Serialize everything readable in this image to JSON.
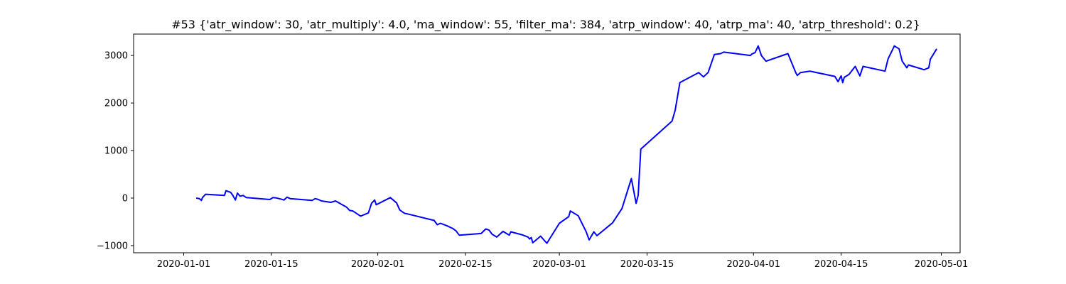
{
  "chart_data": {
    "type": "line",
    "title": "#53 {'atr_window': 30, 'atr_multiply': 4.0, 'ma_window': 55, 'filter_ma': 384, 'atrp_window': 40, 'atrp_ma': 40, 'atrp_threshold': 0.2}",
    "xlabel": "",
    "ylabel": "",
    "xlim": [
      "2019-12-24",
      "2020-05-04"
    ],
    "ylim": [
      -1150,
      3450
    ],
    "x_ticks": [
      "2020-01-01",
      "2020-01-15",
      "2020-02-01",
      "2020-02-15",
      "2020-03-01",
      "2020-03-15",
      "2020-04-01",
      "2020-04-15",
      "2020-05-01"
    ],
    "y_ticks": [
      -1000,
      0,
      1000,
      2000,
      3000
    ],
    "grid": false,
    "series": [
      {
        "color": "#0000ff",
        "points": [
          [
            "2020-01-03",
            0
          ],
          [
            "2020-01-03 12:00",
            -10
          ],
          [
            "2020-01-03 20:00",
            -50
          ],
          [
            "2020-01-04",
            10
          ],
          [
            "2020-01-04 12:00",
            80
          ],
          [
            "2020-01-07 12:00",
            55
          ],
          [
            "2020-01-07 18:00",
            155
          ],
          [
            "2020-01-08 12:00",
            120
          ],
          [
            "2020-01-08 20:00",
            60
          ],
          [
            "2020-01-09 06:00",
            -40
          ],
          [
            "2020-01-09 14:00",
            105
          ],
          [
            "2020-01-10",
            40
          ],
          [
            "2020-01-10 12:00",
            55
          ],
          [
            "2020-01-11",
            10
          ],
          [
            "2020-01-14 18:00",
            -30
          ],
          [
            "2020-01-15 06:00",
            10
          ],
          [
            "2020-01-15 18:00",
            5
          ],
          [
            "2020-01-16 12:00",
            -20
          ],
          [
            "2020-01-17",
            -40
          ],
          [
            "2020-01-17 12:00",
            20
          ],
          [
            "2020-01-18",
            -10
          ],
          [
            "2020-01-21 12:00",
            -50
          ],
          [
            "2020-01-22",
            -10
          ],
          [
            "2020-01-22 12:00",
            -30
          ],
          [
            "2020-01-23",
            -60
          ],
          [
            "2020-01-24 12:00",
            -90
          ],
          [
            "2020-01-25 06:00",
            -60
          ],
          [
            "2020-01-27",
            -190
          ],
          [
            "2020-01-27 12:00",
            -260
          ],
          [
            "2020-01-28",
            -270
          ],
          [
            "2020-01-29 06:00",
            -380
          ],
          [
            "2020-01-30 12:00",
            -310
          ],
          [
            "2020-01-31",
            -110
          ],
          [
            "2020-01-31 12:00",
            -40
          ],
          [
            "2020-01-31 18:00",
            -140
          ],
          [
            "2020-02-03",
            10
          ],
          [
            "2020-02-04",
            -100
          ],
          [
            "2020-02-04 12:00",
            -250
          ],
          [
            "2020-02-05 06:00",
            -320
          ],
          [
            "2020-02-06",
            -340
          ],
          [
            "2020-02-10",
            -470
          ],
          [
            "2020-02-10 12:00",
            -560
          ],
          [
            "2020-02-11",
            -530
          ],
          [
            "2020-02-12",
            -580
          ],
          [
            "2020-02-13",
            -640
          ],
          [
            "2020-02-13 12:00",
            -690
          ],
          [
            "2020-02-14",
            -780
          ],
          [
            "2020-02-17 12:00",
            -745
          ],
          [
            "2020-02-18 06:00",
            -650
          ],
          [
            "2020-02-18 18:00",
            -670
          ],
          [
            "2020-02-19 06:00",
            -760
          ],
          [
            "2020-02-20",
            -820
          ],
          [
            "2020-02-21",
            -700
          ],
          [
            "2020-02-21 18:00",
            -760
          ],
          [
            "2020-02-22",
            -780
          ],
          [
            "2020-02-22 06:00",
            -710
          ],
          [
            "2020-02-24",
            -770
          ],
          [
            "2020-02-25",
            -820
          ],
          [
            "2020-02-25 06:00",
            -860
          ],
          [
            "2020-02-25 12:00",
            -830
          ],
          [
            "2020-02-25 18:00",
            -940
          ],
          [
            "2020-02-27",
            -800
          ],
          [
            "2020-02-28",
            -950
          ],
          [
            "2020-03-01",
            -530
          ],
          [
            "2020-03-02 12:00",
            -390
          ],
          [
            "2020-03-02 18:00",
            -270
          ],
          [
            "2020-03-04",
            -370
          ],
          [
            "2020-03-05 06:00",
            -700
          ],
          [
            "2020-03-05 18:00",
            -880
          ],
          [
            "2020-03-06 12:00",
            -710
          ],
          [
            "2020-03-07",
            -790
          ],
          [
            "2020-03-09 12:00",
            -520
          ],
          [
            "2020-03-11",
            -220
          ],
          [
            "2020-03-12 12:00",
            410
          ],
          [
            "2020-03-13 06:00",
            -110
          ],
          [
            "2020-03-13 14:00",
            60
          ],
          [
            "2020-03-14",
            1030
          ],
          [
            "2020-03-19",
            1620
          ],
          [
            "2020-03-19 12:00",
            1850
          ],
          [
            "2020-03-20 06:00",
            2430
          ],
          [
            "2020-03-23 06:00",
            2640
          ],
          [
            "2020-03-24",
            2550
          ],
          [
            "2020-03-24 18:00",
            2640
          ],
          [
            "2020-03-25 18:00",
            3020
          ],
          [
            "2020-03-26 18:00",
            3040
          ],
          [
            "2020-03-27 06:00",
            3070
          ],
          [
            "2020-03-31 12:00",
            3000
          ],
          [
            "2020-03-31 18:00",
            3030
          ],
          [
            "2020-04-01 06:00",
            3060
          ],
          [
            "2020-04-01 18:00",
            3200
          ],
          [
            "2020-04-02 06:00",
            3000
          ],
          [
            "2020-04-03",
            2880
          ],
          [
            "2020-04-06 12:00",
            3040
          ],
          [
            "2020-04-07 18:00",
            2640
          ],
          [
            "2020-04-08",
            2580
          ],
          [
            "2020-04-08 12:00",
            2640
          ],
          [
            "2020-04-10",
            2670
          ],
          [
            "2020-04-14",
            2560
          ],
          [
            "2020-04-14 12:00",
            2450
          ],
          [
            "2020-04-15",
            2570
          ],
          [
            "2020-04-15 06:00",
            2430
          ],
          [
            "2020-04-15 12:00",
            2540
          ],
          [
            "2020-04-16 06:00",
            2600
          ],
          [
            "2020-04-17 06:00",
            2770
          ],
          [
            "2020-04-18",
            2570
          ],
          [
            "2020-04-18 12:00",
            2770
          ],
          [
            "2020-04-22",
            2670
          ],
          [
            "2020-04-22 12:00",
            2930
          ],
          [
            "2020-04-23 12:00",
            3200
          ],
          [
            "2020-04-24 06:00",
            3140
          ],
          [
            "2020-04-24 18:00",
            2880
          ],
          [
            "2020-04-25 12:00",
            2740
          ],
          [
            "2020-04-25 18:00",
            2800
          ],
          [
            "2020-04-28 06:00",
            2700
          ],
          [
            "2020-04-29",
            2740
          ],
          [
            "2020-04-29 06:00",
            2920
          ],
          [
            "2020-04-30 06:00",
            3140
          ]
        ]
      }
    ]
  }
}
